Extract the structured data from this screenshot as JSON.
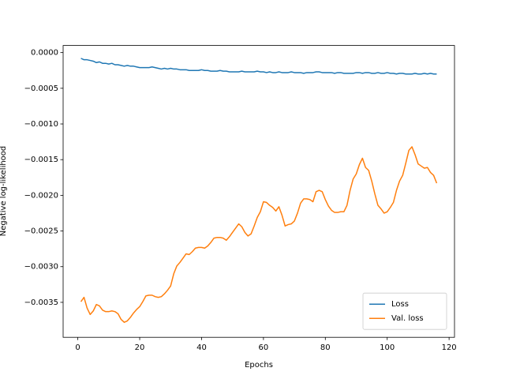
{
  "chart_data": {
    "type": "line",
    "xlabel": "Epochs",
    "ylabel": "Negative log-likelihood",
    "x": [
      1,
      2,
      3,
      4,
      5,
      6,
      7,
      8,
      9,
      10,
      11,
      12,
      13,
      14,
      15,
      16,
      17,
      18,
      19,
      20,
      21,
      22,
      23,
      24,
      25,
      26,
      27,
      28,
      29,
      30,
      31,
      32,
      33,
      34,
      35,
      36,
      37,
      38,
      39,
      40,
      41,
      42,
      43,
      44,
      45,
      46,
      47,
      48,
      49,
      50,
      51,
      52,
      53,
      54,
      55,
      56,
      57,
      58,
      59,
      60,
      61,
      62,
      63,
      64,
      65,
      66,
      67,
      68,
      69,
      70,
      71,
      72,
      73,
      74,
      75,
      76,
      77,
      78,
      79,
      80,
      81,
      82,
      83,
      84,
      85,
      86,
      87,
      88,
      89,
      90,
      91,
      92,
      93,
      94,
      95,
      96,
      97,
      98,
      99,
      100,
      101,
      102,
      103,
      104,
      105,
      106,
      107,
      108,
      109,
      110,
      111,
      112,
      113,
      114,
      115,
      116
    ],
    "series": [
      {
        "name": "Loss",
        "color": "#1f77b4",
        "values": [
          -8e-05,
          -0.0001,
          -0.0001,
          -0.00011,
          -0.00012,
          -0.00014,
          -0.00013,
          -0.00015,
          -0.00015,
          -0.00016,
          -0.00015,
          -0.00017,
          -0.00017,
          -0.00018,
          -0.00019,
          -0.00018,
          -0.00019,
          -0.00019,
          -0.0002,
          -0.00021,
          -0.00021,
          -0.00021,
          -0.00021,
          -0.0002,
          -0.00021,
          -0.00022,
          -0.00023,
          -0.00022,
          -0.00023,
          -0.00022,
          -0.00023,
          -0.00023,
          -0.00024,
          -0.00024,
          -0.00024,
          -0.00025,
          -0.00025,
          -0.00025,
          -0.00025,
          -0.00024,
          -0.00025,
          -0.00025,
          -0.00026,
          -0.00026,
          -0.00026,
          -0.00025,
          -0.00026,
          -0.00026,
          -0.00027,
          -0.00027,
          -0.00027,
          -0.00027,
          -0.00026,
          -0.00027,
          -0.00027,
          -0.00027,
          -0.00027,
          -0.00026,
          -0.00027,
          -0.00027,
          -0.00028,
          -0.00027,
          -0.00028,
          -0.00028,
          -0.00027,
          -0.00028,
          -0.00028,
          -0.00028,
          -0.00027,
          -0.00028,
          -0.00028,
          -0.00028,
          -0.00029,
          -0.00028,
          -0.00028,
          -0.00028,
          -0.00027,
          -0.00027,
          -0.00028,
          -0.00028,
          -0.00028,
          -0.00028,
          -0.00029,
          -0.00028,
          -0.00028,
          -0.00029,
          -0.00029,
          -0.00029,
          -0.00029,
          -0.00028,
          -0.00028,
          -0.00029,
          -0.00028,
          -0.00028,
          -0.00029,
          -0.00029,
          -0.00028,
          -0.00029,
          -0.00029,
          -0.00028,
          -0.00029,
          -0.00029,
          -0.0003,
          -0.00029,
          -0.00029,
          -0.0003,
          -0.0003,
          -0.0003,
          -0.00029,
          -0.0003,
          -0.0003,
          -0.00029,
          -0.0003,
          -0.00029,
          -0.0003,
          -0.0003
        ]
      },
      {
        "name": "Val. loss",
        "color": "#ff7f0e",
        "values": [
          -0.00349,
          -0.00343,
          -0.00358,
          -0.00367,
          -0.00362,
          -0.00353,
          -0.00355,
          -0.00361,
          -0.00363,
          -0.00363,
          -0.00362,
          -0.00363,
          -0.00366,
          -0.00374,
          -0.00378,
          -0.00376,
          -0.00371,
          -0.00365,
          -0.0036,
          -0.00356,
          -0.00349,
          -0.00341,
          -0.0034,
          -0.0034,
          -0.00342,
          -0.00343,
          -0.00342,
          -0.00338,
          -0.00333,
          -0.00327,
          -0.0031,
          -0.00299,
          -0.00294,
          -0.00288,
          -0.00282,
          -0.00283,
          -0.00279,
          -0.00274,
          -0.00273,
          -0.00273,
          -0.00274,
          -0.00271,
          -0.00266,
          -0.0026,
          -0.00259,
          -0.00259,
          -0.0026,
          -0.00263,
          -0.00258,
          -0.00252,
          -0.00246,
          -0.0024,
          -0.00244,
          -0.00252,
          -0.00257,
          -0.00254,
          -0.00243,
          -0.00231,
          -0.00223,
          -0.00209,
          -0.0021,
          -0.00214,
          -0.00217,
          -0.00222,
          -0.00216,
          -0.00228,
          -0.00243,
          -0.00241,
          -0.0024,
          -0.00236,
          -0.00225,
          -0.00211,
          -0.00205,
          -0.00205,
          -0.00206,
          -0.00209,
          -0.00195,
          -0.00193,
          -0.00195,
          -0.00206,
          -0.00215,
          -0.00221,
          -0.00224,
          -0.00224,
          -0.00223,
          -0.00223,
          -0.00214,
          -0.00193,
          -0.00177,
          -0.0017,
          -0.00157,
          -0.00148,
          -0.00161,
          -0.00165,
          -0.0018,
          -0.00198,
          -0.00214,
          -0.00219,
          -0.00225,
          -0.00223,
          -0.00217,
          -0.0021,
          -0.00193,
          -0.0018,
          -0.00172,
          -0.00155,
          -0.00137,
          -0.00132,
          -0.00143,
          -0.00156,
          -0.00159,
          -0.00162,
          -0.00161,
          -0.00168,
          -0.00172,
          -0.00183
        ]
      }
    ],
    "xlim": [
      -4.75,
      121.75
    ],
    "xticks": [
      0,
      20,
      40,
      60,
      80,
      100,
      120
    ],
    "ylim": [
      -0.00399,
      0.0001
    ],
    "yticks": [
      {
        "value": 0,
        "label": "0.0000"
      },
      {
        "value": -0.0005,
        "label": "−0.0005"
      },
      {
        "value": -0.001,
        "label": "−0.0010"
      },
      {
        "value": -0.0015,
        "label": "−0.0015"
      },
      {
        "value": -0.002,
        "label": "−0.0020"
      },
      {
        "value": -0.0025,
        "label": "−0.0025"
      },
      {
        "value": -0.003,
        "label": "−0.0030"
      },
      {
        "value": -0.0035,
        "label": "−0.0035"
      }
    ],
    "legend": "lower right"
  }
}
